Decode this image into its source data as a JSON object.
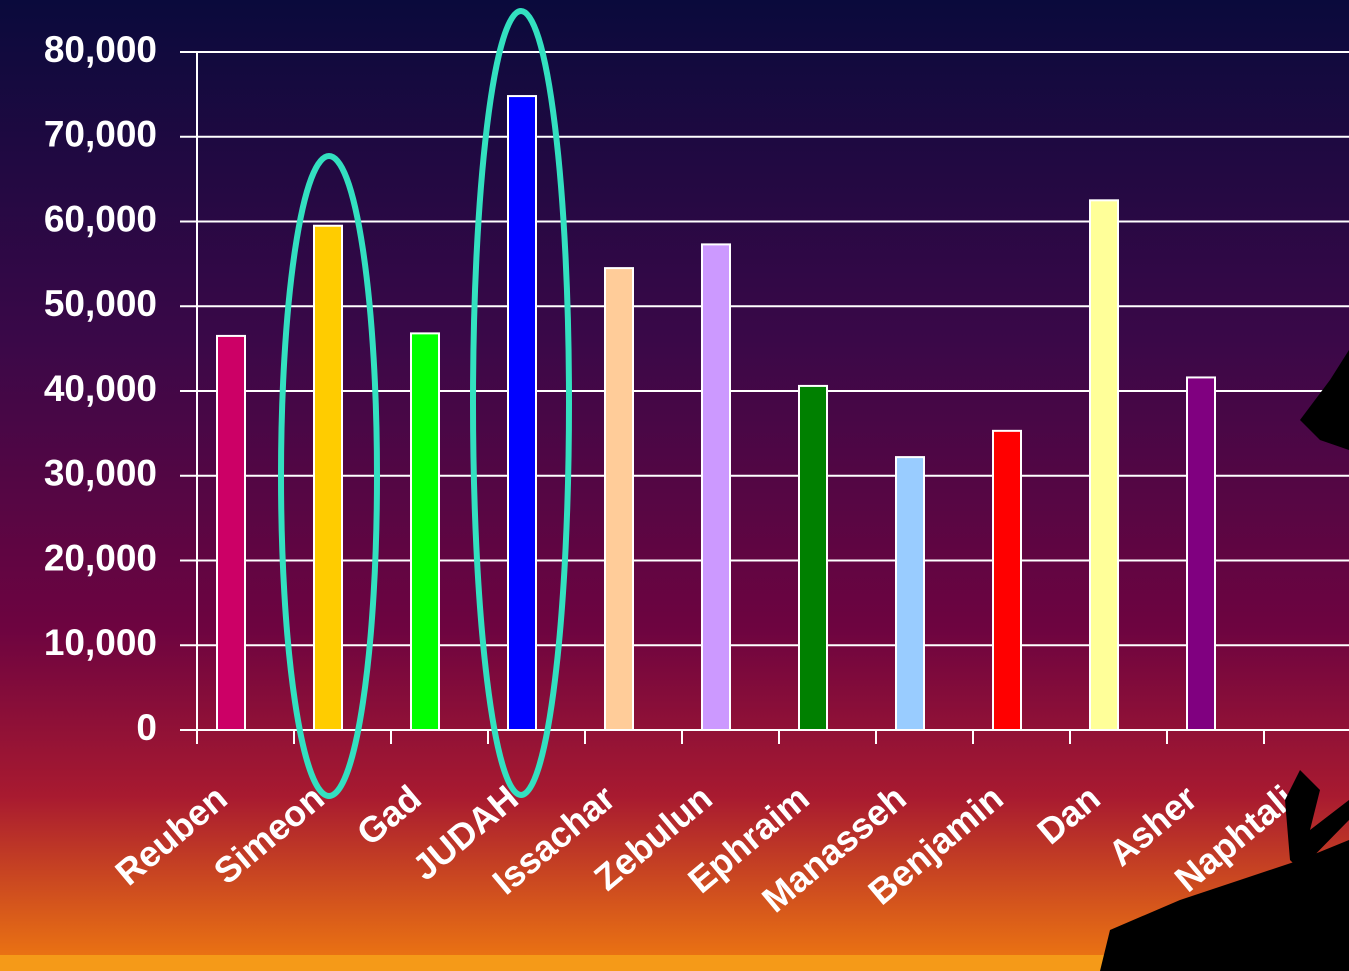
{
  "chart_data": {
    "type": "bar",
    "categories": [
      "Reuben",
      "Simeon",
      "Gad",
      "JUDAH",
      "Issachar",
      "Zebulun",
      "Ephraim",
      "Manasseh",
      "Benjamin",
      "Dan",
      "Asher",
      "Naphtali"
    ],
    "values": [
      46500,
      59500,
      46800,
      74800,
      54500,
      57300,
      40600,
      32200,
      35300,
      62500,
      41600,
      null
    ],
    "colors": [
      "#cc0066",
      "#ffcc00",
      "#00ff00",
      "#0000ff",
      "#ffcc99",
      "#cc99ff",
      "#008000",
      "#99ccff",
      "#ff0000",
      "#ffff99",
      "#800080",
      "#800080"
    ],
    "ylim": [
      0,
      80000
    ],
    "yticks": [
      0,
      {
        "value": 10000,
        "label": "10,000"
      },
      {
        "value": 20000,
        "label": "20,000"
      },
      {
        "value": 30000,
        "label": "30,000"
      },
      {
        "value": 40000,
        "label": "40,000"
      },
      {
        "value": 50000,
        "label": "50,000"
      },
      {
        "value": 60000,
        "label": "60,000"
      },
      {
        "value": 70000,
        "label": "70,000"
      },
      {
        "value": 80000,
        "label": "80,000"
      }
    ],
    "grid": true
  }
}
